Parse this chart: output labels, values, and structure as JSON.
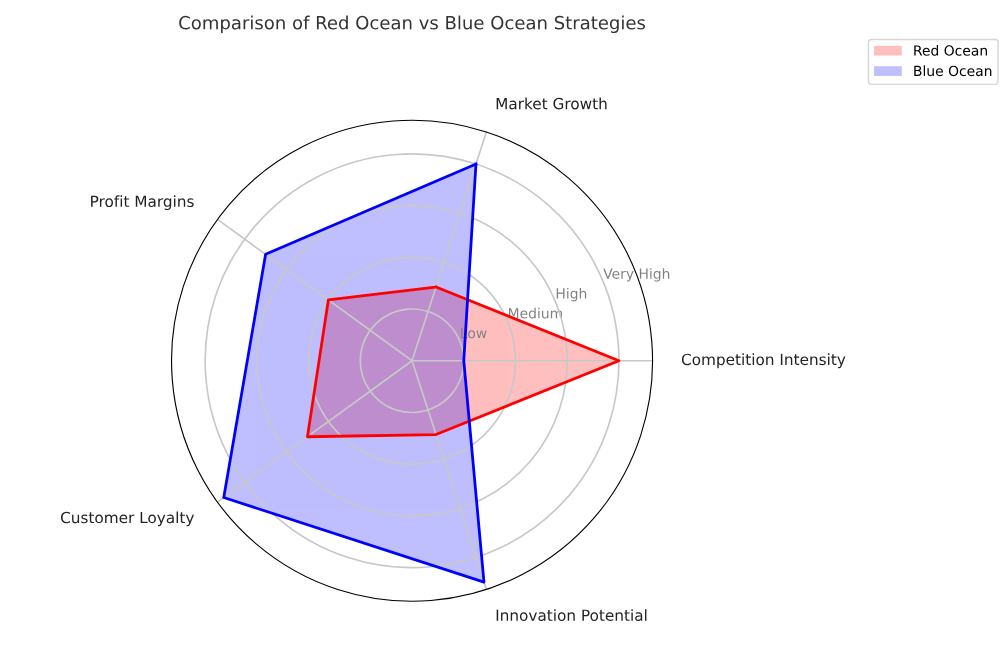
{
  "chart_data": {
    "type": "radar",
    "title": "Comparison of Red Ocean vs Blue Ocean Strategies",
    "categories": [
      "Market Growth",
      "Competition Intensity",
      "Innovation Potential",
      "Customer Loyalty",
      "Profit Margins"
    ],
    "series": [
      {
        "name": "Red Ocean",
        "color": "#ff0000",
        "values": [
          1.5,
          4,
          1.5,
          2.5,
          2
        ]
      },
      {
        "name": "Blue Ocean",
        "color": "#0000ff",
        "values": [
          4,
          1,
          4.5,
          4.5,
          3.5
        ]
      }
    ],
    "ylim": [
      0,
      4.65
    ],
    "yticks": [
      {
        "value": 1,
        "label": "Low"
      },
      {
        "value": 2,
        "label": "Medium"
      },
      {
        "value": 3,
        "label": "High"
      },
      {
        "value": 4,
        "label": "Very High"
      }
    ],
    "grid": true,
    "legend": "top right"
  }
}
